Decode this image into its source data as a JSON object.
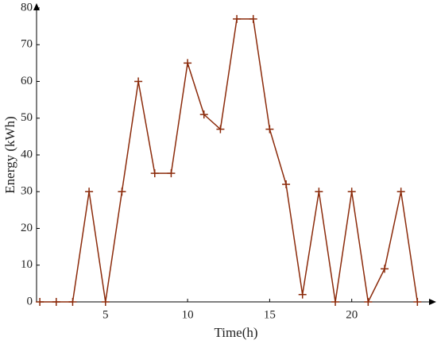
{
  "chart_data": {
    "type": "line",
    "xlabel": "Time(h)",
    "ylabel": "Energy (kWh)",
    "x": [
      1,
      2,
      3,
      4,
      5,
      6,
      7,
      8,
      9,
      10,
      11,
      12,
      13,
      14,
      15,
      16,
      17,
      18,
      19,
      20,
      21,
      22,
      23,
      24
    ],
    "series": [
      {
        "name": "Energy",
        "color": "#8b2a0a",
        "values": [
          0,
          0,
          0,
          30,
          0,
          30,
          60,
          35,
          35,
          65,
          51,
          47,
          77,
          77,
          47,
          32,
          2,
          30,
          0,
          30,
          0,
          9,
          30,
          0
        ]
      }
    ],
    "xlim": [
      0.8,
      25
    ],
    "ylim": [
      0,
      80
    ],
    "xticks": [
      5,
      10,
      15,
      20
    ],
    "yticks": [
      0,
      10,
      20,
      30,
      40,
      50,
      60,
      70,
      80
    ]
  }
}
